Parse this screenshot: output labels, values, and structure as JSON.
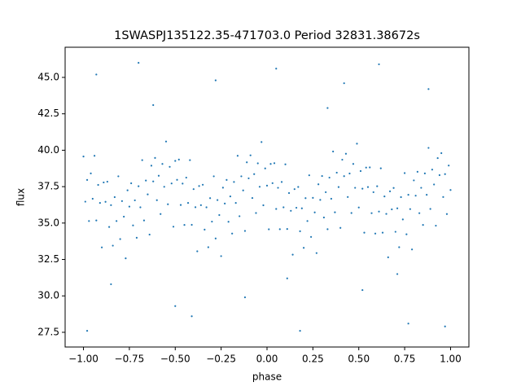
{
  "chart_data": {
    "type": "scatter",
    "title": "1SWASPJ135122.35-471703.0 Period 32831.38672s",
    "xlabel": "phase",
    "ylabel": "flux",
    "color": "#1f77b4",
    "xlim": [
      -1.1,
      1.1
    ],
    "ylim": [
      26.49,
      47.07
    ],
    "xticks": [
      {
        "value": -1,
        "label": "−1.00"
      },
      {
        "value": -0.75,
        "label": "−0.75"
      },
      {
        "value": -0.5,
        "label": "−0.50"
      },
      {
        "value": -0.25,
        "label": "−0.25"
      },
      {
        "value": 0,
        "label": "0.00"
      },
      {
        "value": 0.25,
        "label": "0.25"
      },
      {
        "value": 0.5,
        "label": "0.50"
      },
      {
        "value": 0.75,
        "label": "0.75"
      },
      {
        "value": 1,
        "label": "1.00"
      }
    ],
    "yticks": [
      27.5,
      {
        "value": 30,
        "label": "30.0"
      },
      32.5,
      {
        "value": 35,
        "label": "35.0"
      },
      37.5,
      {
        "value": 40,
        "label": "40.0"
      },
      42.5,
      {
        "value": 45,
        "label": "45.0"
      }
    ],
    "x": [
      -1.0,
      -0.99,
      -0.98,
      -0.97,
      -0.96,
      -0.95,
      -0.94,
      -0.93,
      -0.92,
      -0.91,
      -0.9,
      -0.89,
      -0.88,
      -0.87,
      -0.86,
      -0.85,
      -0.84,
      -0.83,
      -0.82,
      -0.81,
      -0.8,
      -0.79,
      -0.78,
      -0.77,
      -0.76,
      -0.75,
      -0.74,
      -0.73,
      -0.72,
      -0.71,
      -0.7,
      -0.69,
      -0.68,
      -0.67,
      -0.66,
      -0.65,
      -0.64,
      -0.63,
      -0.62,
      -0.61,
      -0.6,
      -0.59,
      -0.58,
      -0.57,
      -0.56,
      -0.55,
      -0.54,
      -0.53,
      -0.52,
      -0.51,
      -0.5,
      -0.49,
      -0.48,
      -0.47,
      -0.46,
      -0.45,
      -0.44,
      -0.43,
      -0.42,
      -0.41,
      -0.4,
      -0.39,
      -0.38,
      -0.37,
      -0.36,
      -0.35,
      -0.34,
      -0.33,
      -0.32,
      -0.31,
      -0.3,
      -0.29,
      -0.28,
      -0.27,
      -0.26,
      -0.25,
      -0.24,
      -0.23,
      -0.22,
      -0.21,
      -0.2,
      -0.19,
      -0.18,
      -0.17,
      -0.16,
      -0.15,
      -0.14,
      -0.13,
      -0.12,
      -0.11,
      -0.1,
      -0.09,
      -0.08,
      -0.07,
      -0.06,
      -0.05,
      -0.04,
      -0.03,
      -0.02,
      -0.01,
      0.0,
      0.01,
      0.02,
      0.03,
      0.04,
      0.05,
      0.06,
      0.07,
      0.08,
      0.09,
      0.1,
      0.11,
      0.12,
      0.13,
      0.14,
      0.15,
      0.16,
      0.17,
      0.18,
      0.19,
      0.2,
      0.21,
      0.22,
      0.23,
      0.24,
      0.25,
      0.26,
      0.27,
      0.28,
      0.29,
      0.3,
      0.31,
      0.32,
      0.33,
      0.34,
      0.35,
      0.36,
      0.37,
      0.38,
      0.39,
      0.4,
      0.41,
      0.42,
      0.43,
      0.44,
      0.45,
      0.46,
      0.47,
      0.48,
      0.49,
      0.5,
      0.51,
      0.52,
      0.53,
      0.54,
      0.55,
      0.56,
      0.57,
      0.58,
      0.59,
      0.6,
      0.61,
      0.62,
      0.63,
      0.64,
      0.65,
      0.66,
      0.67,
      0.68,
      0.69,
      0.7,
      0.71,
      0.72,
      0.73,
      0.74,
      0.75,
      0.76,
      0.77,
      0.78,
      0.79,
      0.8,
      0.81,
      0.82,
      0.83,
      0.84,
      0.85,
      0.86,
      0.87,
      0.88,
      0.89,
      0.9,
      0.91,
      0.92,
      0.93,
      0.94,
      0.95,
      0.96,
      0.97,
      0.98,
      0.99,
      1.0,
      -0.93,
      -0.62,
      -0.41,
      -0.28,
      -0.12,
      0.05,
      0.18,
      0.33,
      0.52,
      0.61,
      0.77,
      0.88,
      0.97,
      -0.85,
      -0.7,
      0.11,
      -0.5,
      0.42,
      0.71,
      -0.98
    ],
    "values": [
      39.57,
      36.47,
      37.96,
      35.14,
      38.41,
      36.67,
      39.62,
      35.18,
      37.62,
      36.38,
      33.33,
      37.79,
      36.46,
      37.84,
      34.73,
      36.23,
      33.45,
      36.78,
      35.14,
      38.21,
      33.9,
      36.51,
      35.44,
      32.58,
      37.25,
      36.13,
      37.73,
      34.84,
      36.56,
      33.99,
      37.53,
      36.08,
      39.32,
      35.18,
      37.92,
      36.97,
      34.21,
      38.94,
      37.86,
      39.47,
      36.57,
      38.25,
      35.62,
      39.06,
      37.49,
      40.6,
      36.29,
      38.86,
      37.72,
      34.75,
      39.27,
      37.97,
      39.36,
      36.24,
      37.71,
      34.87,
      38.12,
      36.38,
      39.32,
      34.88,
      37.33,
      36.09,
      33.06,
      37.54,
      36.23,
      37.63,
      34.55,
      36.08,
      33.34,
      36.71,
      35.1,
      38.21,
      33.94,
      36.58,
      35.55,
      32.73,
      37.43,
      36.34,
      37.96,
      35.09,
      36.83,
      34.28,
      37.82,
      36.38,
      39.62,
      35.47,
      38.21,
      37.24,
      34.46,
      39.17,
      38.07,
      39.65,
      36.72,
      38.36,
      35.69,
      39.1,
      37.49,
      40.56,
      36.22,
      38.75,
      37.57,
      34.57,
      39.06,
      37.74,
      39.11,
      35.97,
      37.42,
      34.58,
      37.82,
      36.08,
      39.03,
      34.59,
      37.06,
      35.84,
      32.83,
      37.33,
      36.05,
      37.48,
      34.44,
      36.01,
      33.3,
      36.71,
      35.14,
      38.28,
      34.05,
      36.73,
      35.73,
      32.94,
      37.66,
      36.59,
      38.23,
      35.38,
      37.12,
      34.58,
      38.12,
      36.67,
      39.91,
      35.74,
      38.46,
      37.47,
      34.67,
      39.35,
      38.22,
      39.76,
      36.79,
      38.4,
      35.69,
      39.06,
      37.42,
      40.45,
      36.07,
      38.57,
      37.36,
      34.34,
      38.81,
      37.47,
      38.82,
      35.68,
      37.12,
      34.28,
      37.53,
      35.79,
      38.76,
      34.34,
      36.83,
      35.63,
      32.65,
      37.18,
      35.94,
      37.41,
      34.4,
      36.01,
      33.34,
      36.78,
      35.25,
      38.43,
      34.23,
      36.94,
      35.96,
      33.19,
      37.93,
      36.88,
      38.52,
      35.68,
      37.42,
      34.87,
      38.41,
      36.94,
      40.16,
      35.97,
      38.67,
      37.65,
      34.82,
      39.46,
      38.29,
      39.8,
      36.79,
      38.36,
      35.62,
      38.95,
      37.27,
      45.2,
      43.1,
      28.6,
      44.8,
      29.9,
      45.6,
      27.6,
      42.9,
      30.4,
      45.9,
      28.1,
      44.2,
      27.9,
      30.8,
      46.0,
      31.2,
      29.3,
      44.6,
      31.5,
      27.6
    ]
  }
}
